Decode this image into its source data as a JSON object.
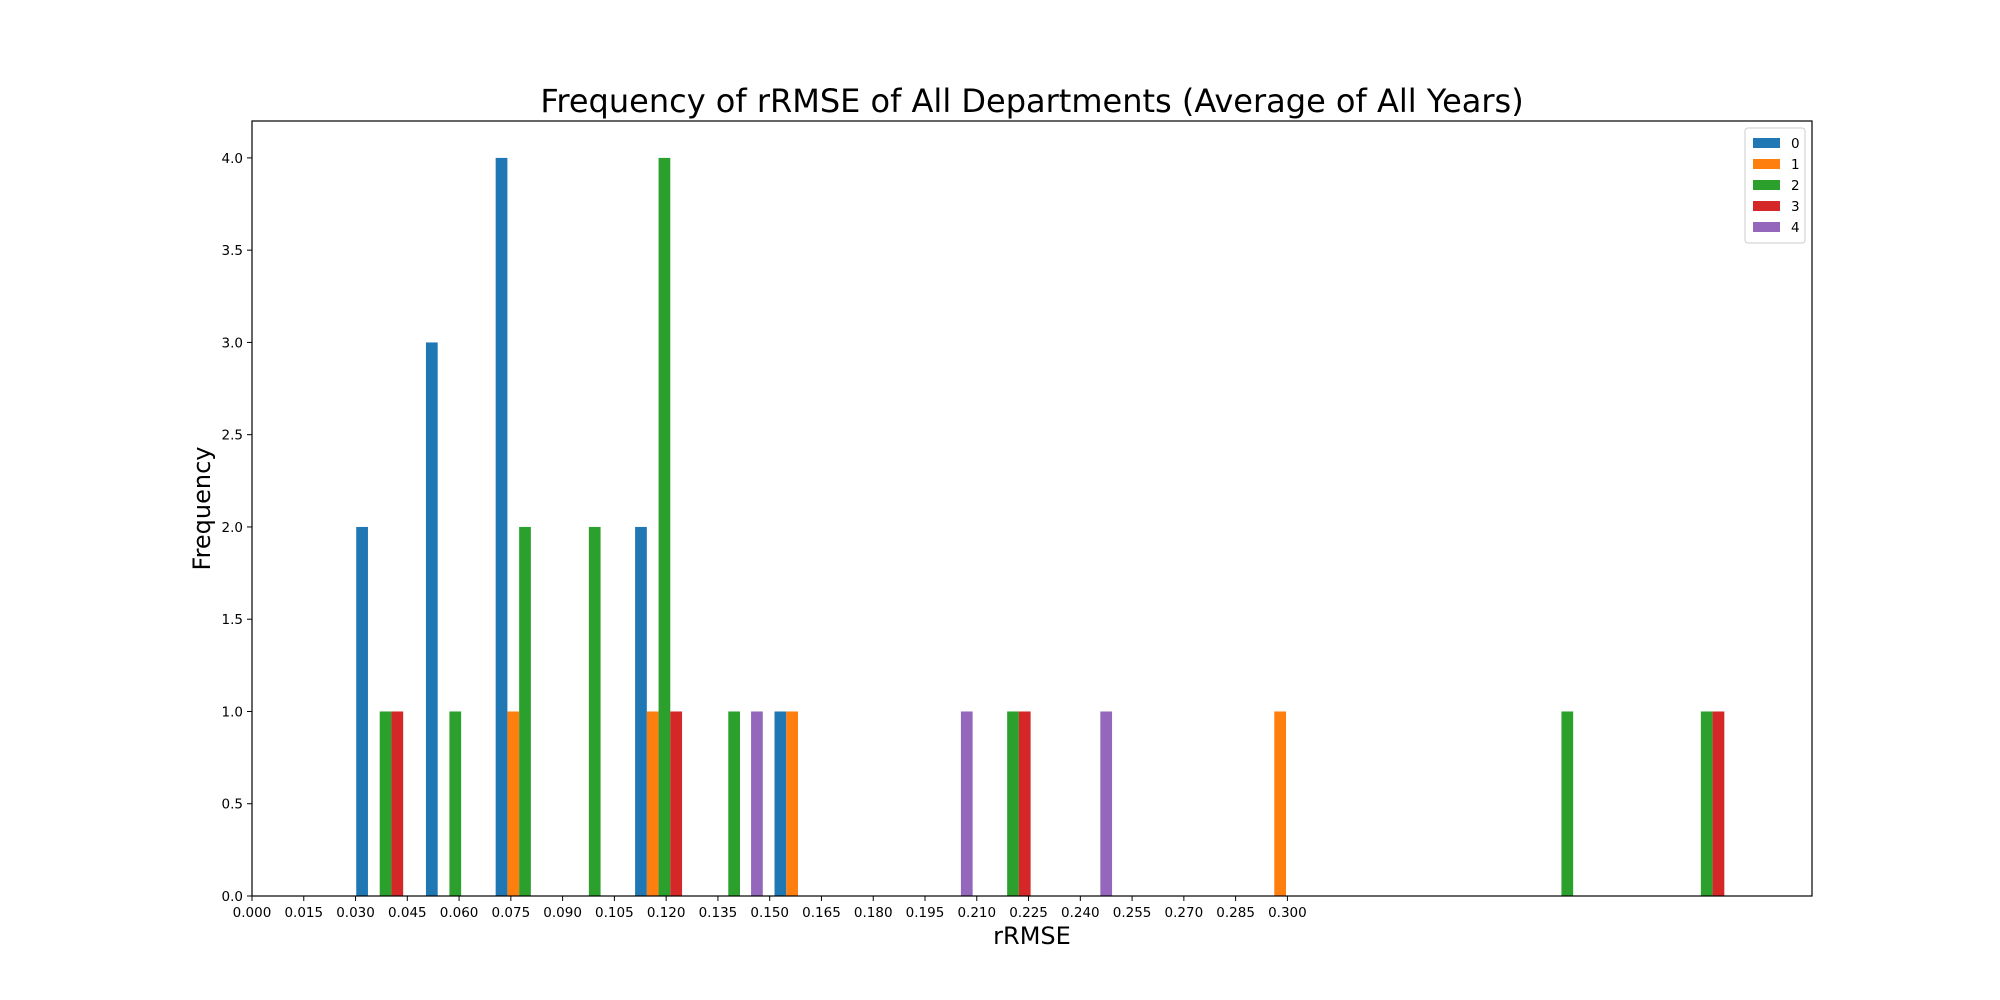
{
  "chart_data": {
    "type": "bar",
    "title": "Frequency of rRMSE of All Departments (Average of All Years)",
    "xlabel": "rRMSE",
    "ylabel": "Frequency",
    "xlim": [
      0.0,
      0.452
    ],
    "ylim": [
      0.0,
      4.2
    ],
    "x_ticks": [
      "0.000",
      "0.015",
      "0.030",
      "0.045",
      "0.060",
      "0.075",
      "0.090",
      "0.105",
      "0.120",
      "0.135",
      "0.150",
      "0.165",
      "0.180",
      "0.195",
      "0.210",
      "0.225",
      "0.240",
      "0.255",
      "0.270",
      "0.285",
      "0.300"
    ],
    "x_tick_values": [
      0.0,
      0.015,
      0.03,
      0.045,
      0.06,
      0.075,
      0.09,
      0.105,
      0.12,
      0.135,
      0.15,
      0.165,
      0.18,
      0.195,
      0.21,
      0.225,
      0.24,
      0.255,
      0.27,
      0.285,
      0.3
    ],
    "y_ticks": [
      "0.0",
      "0.5",
      "1.0",
      "1.5",
      "2.0",
      "2.5",
      "3.0",
      "3.5",
      "4.0"
    ],
    "y_tick_values": [
      0.0,
      0.5,
      1.0,
      1.5,
      2.0,
      2.5,
      3.0,
      3.5,
      4.0
    ],
    "bar_width": 0.0034,
    "grid": false,
    "legend_position": "top-right",
    "series": [
      {
        "name": "0",
        "color": "#1f77b4",
        "x": [
          0.0302,
          0.0504,
          0.0706,
          0.111,
          0.1514
        ],
        "values": [
          2,
          3,
          4,
          2,
          1
        ]
      },
      {
        "name": "1",
        "color": "#ff7f0e",
        "x": [
          0.074,
          0.1144,
          0.1548,
          0.2962
        ],
        "values": [
          1,
          1,
          1,
          1
        ]
      },
      {
        "name": "2",
        "color": "#2ca02c",
        "x": [
          0.037,
          0.0572,
          0.0774,
          0.0976,
          0.1178,
          0.138,
          0.2188,
          0.3794,
          0.4198
        ],
        "values": [
          1,
          1,
          2,
          2,
          4,
          1,
          1,
          1,
          1
        ]
      },
      {
        "name": "3",
        "color": "#d62728",
        "x": [
          0.0404,
          0.1212,
          0.2222,
          0.4232
        ],
        "values": [
          1,
          1,
          1,
          1
        ]
      },
      {
        "name": "4",
        "color": "#9467bd",
        "x": [
          0.1446,
          0.2054,
          0.2458
        ],
        "values": [
          1,
          1,
          1
        ]
      }
    ]
  }
}
